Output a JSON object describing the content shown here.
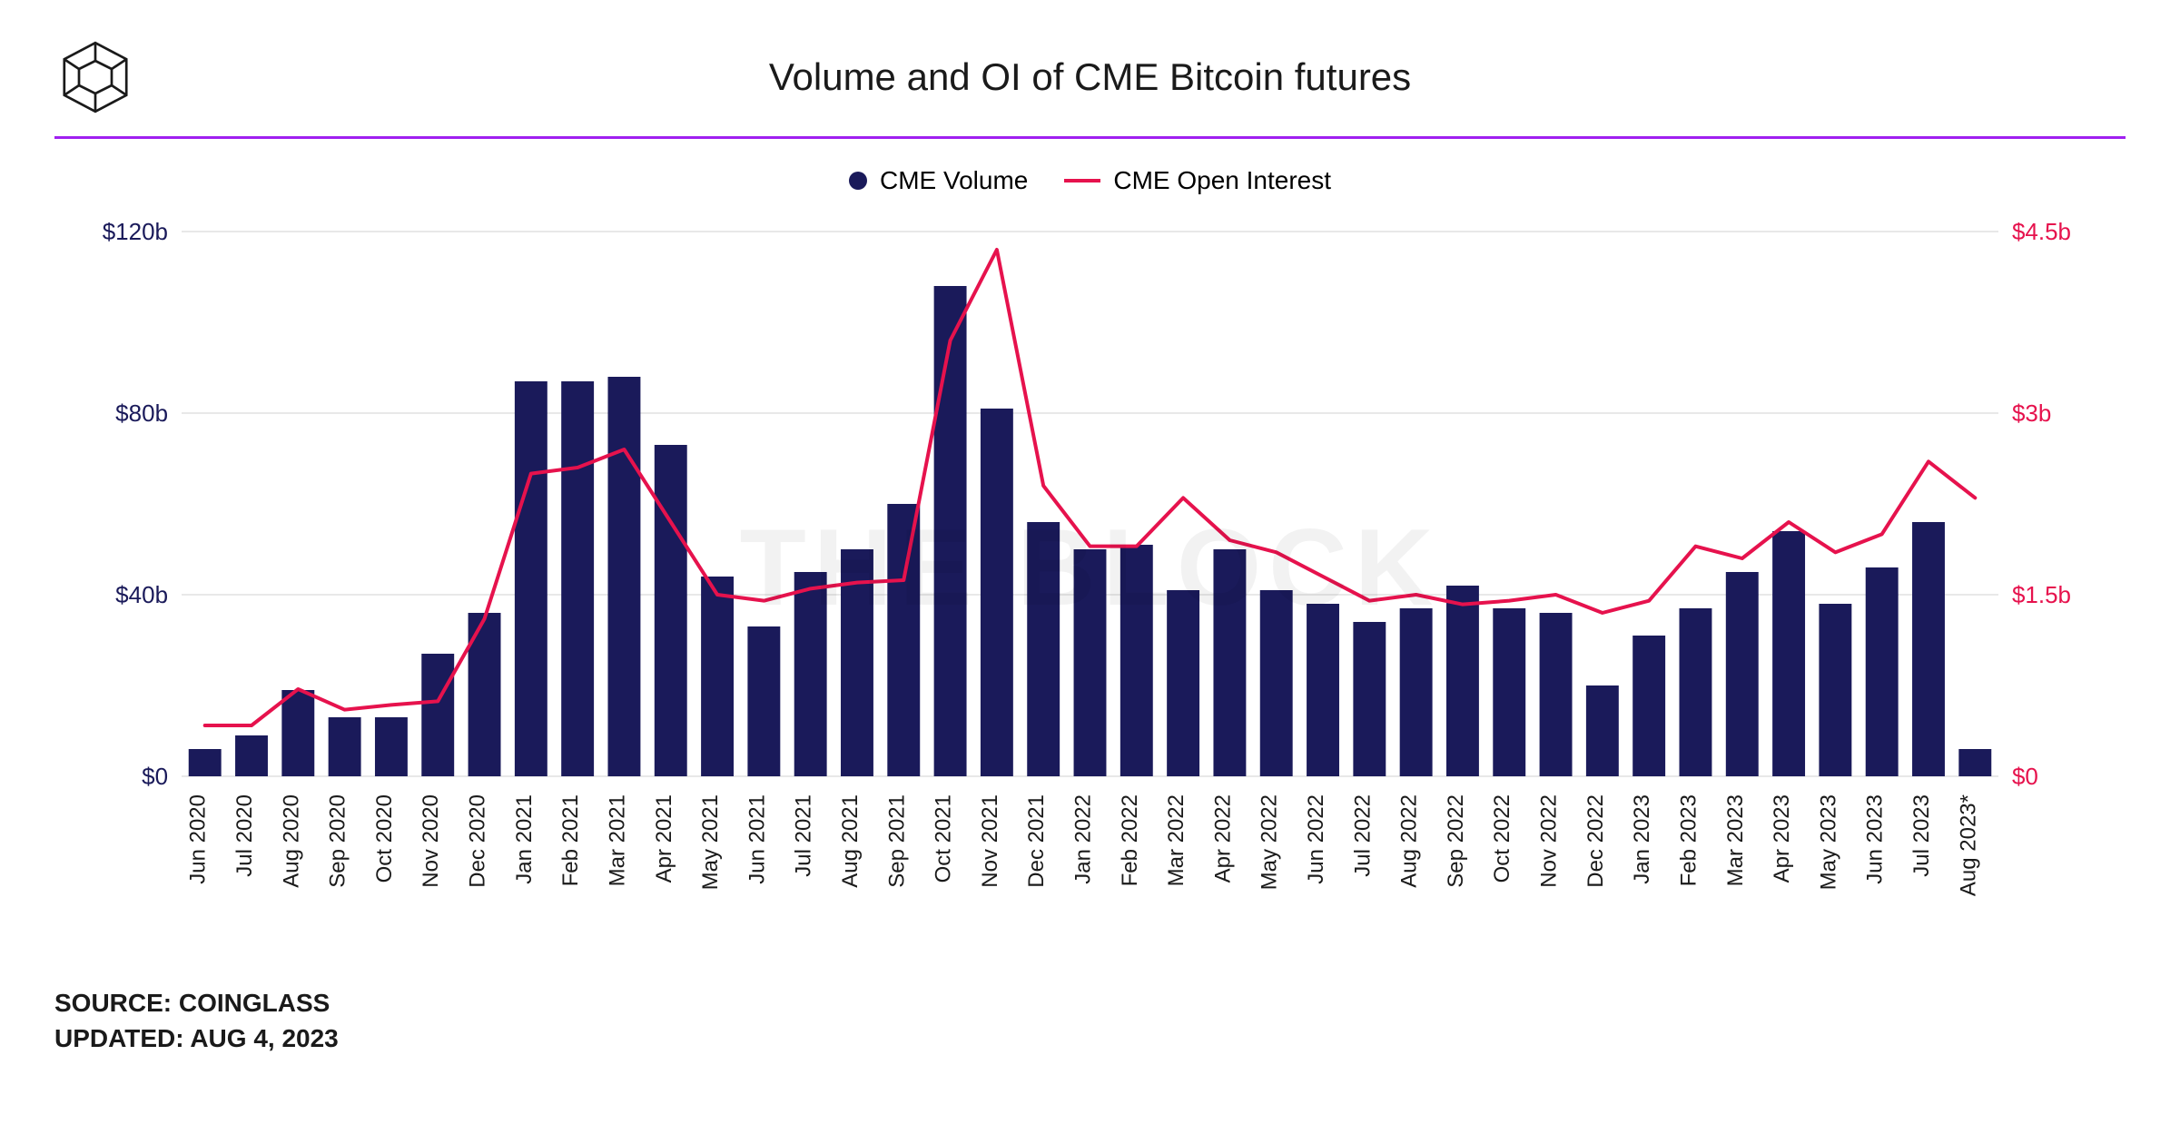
{
  "title": "Volume and OI of CME Bitcoin futures",
  "watermark": "THE BLOCK",
  "divider_color": "#a020f0",
  "source_label": "SOURCE: COINGLASS",
  "updated_label": "UPDATED: AUG 4, 2023",
  "legend": {
    "bar_label": "CME Volume",
    "line_label": "CME Open Interest"
  },
  "chart": {
    "type": "bar+line",
    "background_color": "#ffffff",
    "bar_color": "#1a1a5a",
    "line_color": "#e6124d",
    "line_width": 4,
    "grid_color": "#d0d0d0",
    "grid_width": 1,
    "left_axis": {
      "min": 0,
      "max": 120,
      "step": 40,
      "labels": [
        "$0",
        "$40b",
        "$80b",
        "$120b"
      ],
      "color": "#1a1a5a"
    },
    "right_axis": {
      "min": 0,
      "max": 4.5,
      "step": 1.5,
      "labels": [
        "$0",
        "$1.5b",
        "$3b",
        "$4.5b"
      ],
      "color": "#e6124d"
    },
    "categories": [
      "Jun 2020",
      "Jul 2020",
      "Aug 2020",
      "Sep 2020",
      "Oct 2020",
      "Nov 2020",
      "Dec 2020",
      "Jan 2021",
      "Feb 2021",
      "Mar 2021",
      "Apr 2021",
      "May 2021",
      "Jun 2021",
      "Jul 2021",
      "Aug 2021",
      "Sep 2021",
      "Oct 2021",
      "Nov 2021",
      "Dec 2021",
      "Jan 2022",
      "Feb 2022",
      "Mar 2022",
      "Apr 2022",
      "May 2022",
      "Jun 2022",
      "Jul 2022",
      "Aug 2022",
      "Sep 2022",
      "Oct 2022",
      "Nov 2022",
      "Dec 2022",
      "Jan 2023",
      "Feb 2023",
      "Mar 2023",
      "Apr 2023",
      "May 2023",
      "Jun 2023",
      "Jul 2023",
      "Aug 2023*"
    ],
    "volume_values": [
      6,
      9,
      19,
      13,
      13,
      27,
      36,
      87,
      87,
      88,
      73,
      44,
      33,
      45,
      50,
      60,
      108,
      81,
      56,
      50,
      51,
      41,
      50,
      41,
      38,
      34,
      37,
      42,
      37,
      36,
      20,
      31,
      37,
      45,
      54,
      38,
      46,
      56,
      6
    ],
    "oi_values": [
      0.42,
      0.42,
      0.72,
      0.55,
      0.59,
      0.62,
      1.3,
      2.5,
      2.55,
      2.7,
      2.1,
      1.5,
      1.45,
      1.55,
      1.6,
      1.62,
      3.6,
      4.35,
      2.4,
      1.9,
      1.9,
      2.3,
      1.95,
      1.85,
      1.65,
      1.45,
      1.5,
      1.42,
      1.45,
      1.5,
      1.35,
      1.45,
      1.9,
      1.8,
      2.1,
      1.85,
      2.0,
      2.6,
      2.3
    ],
    "bar_width_ratio": 0.7,
    "label_fontsize": 26,
    "xlabel_fontsize": 24
  }
}
